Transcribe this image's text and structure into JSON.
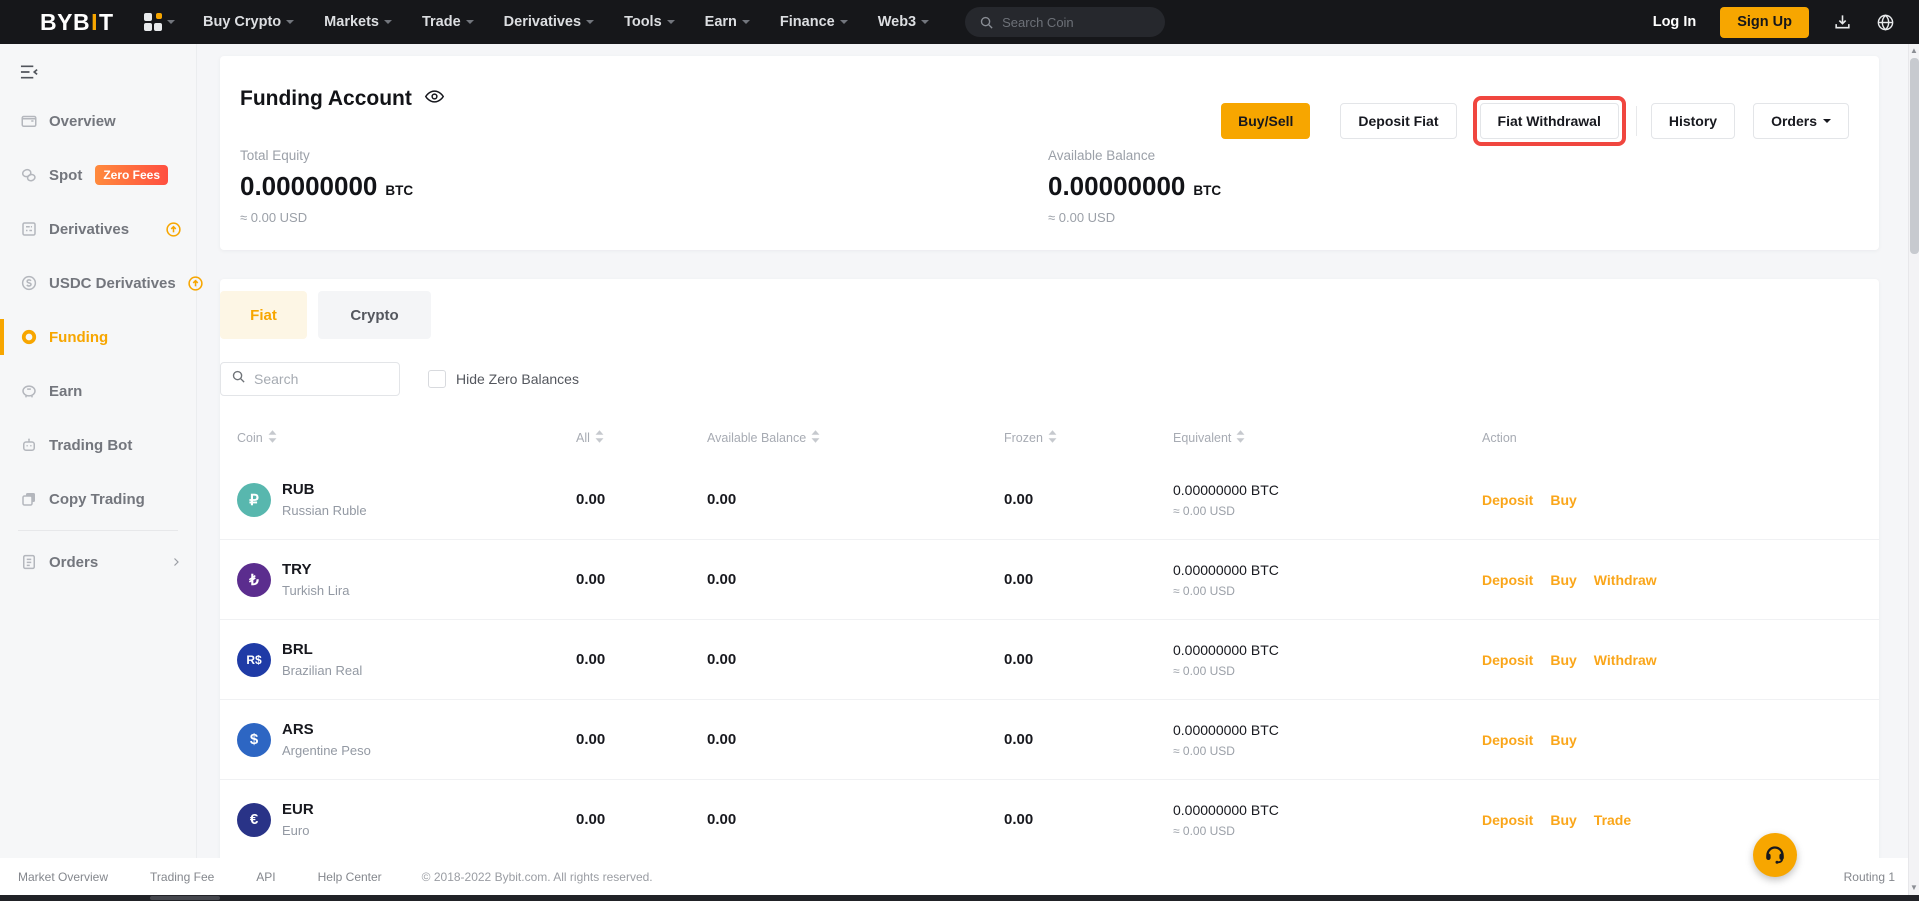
{
  "nav": {
    "logo": {
      "part1": "BYB",
      "accent": "I",
      "part2": "T"
    },
    "menu": [
      "Buy Crypto",
      "Markets",
      "Trade",
      "Derivatives",
      "Tools",
      "Earn",
      "Finance",
      "Web3"
    ],
    "search_placeholder": "Search Coin",
    "login_label": "Log In",
    "signup_label": "Sign Up"
  },
  "sidebar": {
    "items": [
      {
        "label": "Overview",
        "icon": "wallet-icon"
      },
      {
        "label": "Spot",
        "icon": "spot-icon",
        "badge": "Zero Fees"
      },
      {
        "label": "Derivatives",
        "icon": "derivatives-icon",
        "trailing": "promo-up-icon"
      },
      {
        "label": "USDC Derivatives",
        "icon": "usdc-icon",
        "trailing": "promo-up-icon"
      },
      {
        "label": "Funding",
        "icon": "funding-icon",
        "active": true
      },
      {
        "label": "Earn",
        "icon": "earn-icon"
      },
      {
        "label": "Trading Bot",
        "icon": "bot-icon"
      },
      {
        "label": "Copy Trading",
        "icon": "copy-icon"
      },
      {
        "label": "Orders",
        "icon": "orders-icon",
        "chevron": true,
        "divider_before": true
      }
    ]
  },
  "account": {
    "title": "Funding Account",
    "buttons": {
      "buy_sell": "Buy/Sell",
      "deposit_fiat": "Deposit Fiat",
      "fiat_withdrawal": "Fiat Withdrawal",
      "history": "History",
      "orders": "Orders"
    },
    "total_equity": {
      "label": "Total Equity",
      "value": "0.00000000",
      "unit": "BTC",
      "approx": "≈ 0.00 USD"
    },
    "available_balance": {
      "label": "Available Balance",
      "value": "0.00000000",
      "unit": "BTC",
      "approx": "≈ 0.00 USD"
    }
  },
  "balances": {
    "tabs": [
      {
        "label": "Fiat",
        "active": true
      },
      {
        "label": "Crypto",
        "active": false
      }
    ],
    "search_placeholder": "Search",
    "hide_zero_label": "Hide Zero Balances",
    "table": {
      "headers": [
        {
          "label": "Coin",
          "sortable": true
        },
        {
          "label": "All",
          "sortable": true
        },
        {
          "label": "Available Balance",
          "sortable": true
        },
        {
          "label": "Frozen",
          "sortable": true
        },
        {
          "label": "Equivalent",
          "sortable": true
        },
        {
          "label": "Action",
          "sortable": false
        }
      ],
      "rows": [
        {
          "symbol": "RUB",
          "name": "Russian Ruble",
          "glyph": "₽",
          "color": "#58b7ae",
          "all": "0.00",
          "available": "0.00",
          "frozen": "0.00",
          "equiv_btc": "0.00000000 BTC",
          "equiv_usd": "≈ 0.00 USD",
          "actions": [
            "Deposit",
            "Buy"
          ]
        },
        {
          "symbol": "TRY",
          "name": "Turkish Lira",
          "glyph": "₺",
          "color": "#5b2d8e",
          "all": "0.00",
          "available": "0.00",
          "frozen": "0.00",
          "equiv_btc": "0.00000000 BTC",
          "equiv_usd": "≈ 0.00 USD",
          "actions": [
            "Deposit",
            "Buy",
            "Withdraw"
          ]
        },
        {
          "symbol": "BRL",
          "name": "Brazilian Real",
          "glyph": "R$",
          "color": "#1f3ba6",
          "all": "0.00",
          "available": "0.00",
          "frozen": "0.00",
          "equiv_btc": "0.00000000 BTC",
          "equiv_usd": "≈ 0.00 USD",
          "actions": [
            "Deposit",
            "Buy",
            "Withdraw"
          ]
        },
        {
          "symbol": "ARS",
          "name": "Argentine Peso",
          "glyph": "$",
          "color": "#2d66c3",
          "all": "0.00",
          "available": "0.00",
          "frozen": "0.00",
          "equiv_btc": "0.00000000 BTC",
          "equiv_usd": "≈ 0.00 USD",
          "actions": [
            "Deposit",
            "Buy"
          ]
        },
        {
          "symbol": "EUR",
          "name": "Euro",
          "glyph": "€",
          "color": "#293387",
          "all": "0.00",
          "available": "0.00",
          "frozen": "0.00",
          "equiv_btc": "0.00000000 BTC",
          "equiv_usd": "≈ 0.00 USD",
          "actions": [
            "Deposit",
            "Buy",
            "Trade"
          ]
        }
      ]
    }
  },
  "footer": {
    "links": [
      "Market Overview",
      "Trading Fee",
      "API",
      "Help Center"
    ],
    "copyright": "© 2018-2022 Bybit.com. All rights reserved.",
    "routing": "Routing 1"
  },
  "colors": {
    "accent": "#f7a600",
    "link": "#faa61a",
    "highlight": "#f0463f"
  }
}
